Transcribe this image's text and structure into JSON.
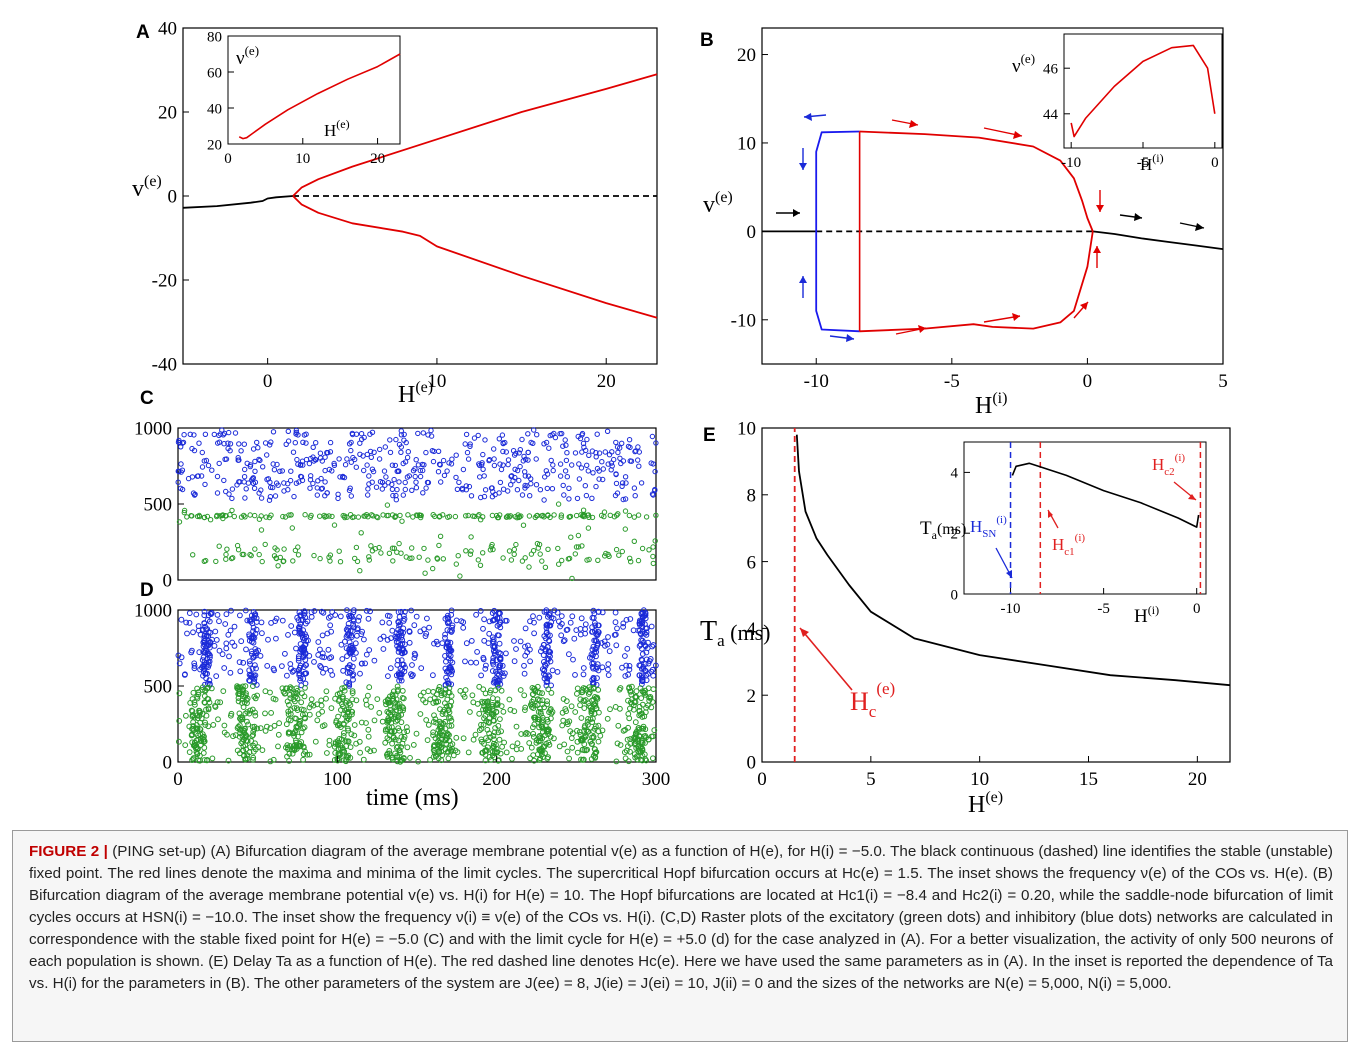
{
  "panel_labels": {
    "A": "A",
    "B": "B",
    "C": "C",
    "D": "D",
    "E": "E"
  },
  "chart_data": [
    {
      "panel": "A",
      "type": "line",
      "xlabel": "H(e)",
      "ylabel": "v(e)",
      "xlim": [
        -5,
        23
      ],
      "ylim": [
        -40,
        40
      ],
      "x_ticks": [
        "0",
        "10",
        "20"
      ],
      "y_ticks": [
        "40",
        "20",
        "0",
        "-20",
        "-40"
      ],
      "series": [
        {
          "role": "stable fixed point",
          "color": "#000000",
          "style": "solid",
          "x": [
            -5,
            -3,
            -1,
            -0.3,
            0,
            0.5,
            1.5
          ],
          "y": [
            -2.8,
            -2.4,
            -1.6,
            -1.2,
            -0.6,
            -0.3,
            0
          ]
        },
        {
          "role": "unstable fixed point",
          "color": "#000000",
          "style": "dashed",
          "x": [
            1.5,
            23
          ],
          "y": [
            0,
            0
          ]
        },
        {
          "role": "limit cycle maxima",
          "color": "#e00000",
          "style": "solid",
          "x": [
            1.5,
            2,
            3,
            5,
            10,
            15,
            20,
            23
          ],
          "y": [
            0,
            2,
            4,
            7,
            13.5,
            20,
            25.5,
            29
          ]
        },
        {
          "role": "limit cycle minima",
          "color": "#e00000",
          "style": "solid",
          "x": [
            1.5,
            2,
            3,
            5,
            8,
            9,
            10,
            15,
            20,
            23
          ],
          "y": [
            0,
            -2,
            -4,
            -6.5,
            -8.5,
            -9.5,
            -12,
            -19,
            -25.5,
            -29
          ]
        }
      ],
      "inset": {
        "xlabel": "H(e)",
        "ylabel": "ν(e)",
        "xlim": [
          0,
          23
        ],
        "ylim": [
          20,
          80
        ],
        "x_ticks": [
          "0",
          "10",
          "20"
        ],
        "y_ticks": [
          "80",
          "60",
          "40",
          "20"
        ],
        "series": [
          {
            "color": "#e00000",
            "x": [
              1.5,
              2,
              2.5,
              3,
              5,
              8,
              12,
              16,
              20,
              23
            ],
            "y": [
              24,
              23,
              23.5,
              25,
              31,
              39,
              48,
              56,
              63,
              70
            ]
          }
        ]
      }
    },
    {
      "panel": "B",
      "type": "line",
      "xlabel": "H(i)",
      "ylabel": "v(e)",
      "xlim": [
        -12,
        5
      ],
      "ylim": [
        -15,
        23
      ],
      "x_ticks": [
        "-10",
        "-5",
        "0",
        "5"
      ],
      "y_ticks": [
        "20",
        "10",
        "0",
        "-10"
      ],
      "series": [
        {
          "role": "stable fixed point",
          "color": "#000000",
          "style": "solid",
          "x": [
            -12,
            -10
          ],
          "y": [
            0,
            0
          ]
        },
        {
          "role": "stable fixed point",
          "color": "#000000",
          "style": "solid",
          "x": [
            0.2,
            1,
            2,
            3,
            4,
            5
          ],
          "y": [
            0,
            -0.3,
            -0.8,
            -1.2,
            -1.6,
            -2
          ]
        },
        {
          "role": "unstable fixed point",
          "color": "#000000",
          "style": "dashed",
          "x": [
            -10,
            0.2
          ],
          "y": [
            0,
            0
          ]
        },
        {
          "role": "unstable limit cycle",
          "color": "#1a1aee",
          "style": "solid",
          "x": [
            -8.4,
            -9.8,
            -10,
            -10,
            -9.8,
            -8.4
          ],
          "y": [
            11.3,
            11.2,
            9,
            -9,
            -11.1,
            -11.3
          ]
        },
        {
          "role": "stable limit cycle maxima",
          "color": "#e00000",
          "style": "solid",
          "x": [
            -8.4,
            -6,
            -4,
            -2,
            -1,
            -0.5,
            -0.2,
            0,
            0.2
          ],
          "y": [
            11.3,
            11,
            10.6,
            9.6,
            8,
            6,
            3.5,
            1.5,
            0
          ]
        },
        {
          "role": "stable limit cycle minima",
          "color": "#e00000",
          "style": "solid",
          "x": [
            -8.4,
            -6,
            -4.2,
            -3.5,
            -2,
            -1,
            -0.5,
            0,
            0.2
          ],
          "y": [
            -11.3,
            -11,
            -10.5,
            -10.8,
            -11,
            -10.3,
            -9,
            -4,
            0
          ]
        }
      ],
      "inset": {
        "xlabel": "H(i)",
        "ylabel": "ν(e)",
        "xlim": [
          -10.5,
          0.5
        ],
        "ylim": [
          42.5,
          47.5
        ],
        "x_ticks": [
          "-10",
          "-5",
          "0"
        ],
        "y_ticks": [
          "46",
          "44"
        ],
        "series": [
          {
            "color": "#e00000",
            "x": [
              -10,
              -9.8,
              -9,
              -7,
              -5,
              -3,
              -1.5,
              -0.5,
              0
            ],
            "y": [
              43.6,
              43,
              43.8,
              45.2,
              46.3,
              46.9,
              47,
              46,
              44
            ]
          }
        ]
      }
    },
    {
      "panel": "C",
      "type": "scatter",
      "ylim": [
        0,
        1000
      ],
      "xlim": [
        0,
        300
      ],
      "y_ticks": [
        "1000",
        "500",
        "0"
      ],
      "series": [
        {
          "name": "",
          "color": "#1a2ad8",
          "y_range": [
            500,
            1000
          ],
          "mode": "random"
        },
        {
          "name": "",
          "color": "#2a9a2a",
          "y_range": [
            0,
            500
          ],
          "mode": "random"
        }
      ]
    },
    {
      "panel": "D",
      "type": "scatter",
      "xlabel": "time (ms)",
      "xlim": [
        0,
        300
      ],
      "ylim": [
        0,
        1000
      ],
      "x_ticks": [
        "0",
        "100",
        "200",
        "300"
      ],
      "y_ticks": [
        "1000",
        "500",
        "0"
      ],
      "burst_times_ms": [
        18,
        47,
        78,
        108,
        140,
        170,
        200,
        232,
        262,
        292
      ],
      "series": [
        {
          "name": "",
          "color": "#1a2ad8",
          "y_range": [
            500,
            1000
          ],
          "mode": "bursts"
        },
        {
          "name": "",
          "color": "#2a9a2a",
          "y_range": [
            0,
            500
          ],
          "mode": "bursts"
        }
      ]
    },
    {
      "panel": "E",
      "type": "line",
      "xlabel": "H(e)",
      "ylabel": "Ta (ms)",
      "xlim": [
        0,
        21.5
      ],
      "ylim": [
        0,
        10
      ],
      "x_ticks": [
        "0",
        "5",
        "10",
        "15",
        "20"
      ],
      "y_ticks": [
        "10",
        "8",
        "6",
        "4",
        "2",
        "0"
      ],
      "series": [
        {
          "role": "Ta vs H(e)",
          "color": "#000000",
          "style": "solid",
          "x": [
            1.6,
            1.7,
            2,
            2.5,
            3,
            4,
            5,
            7,
            10,
            13,
            16,
            19,
            21.5
          ],
          "y": [
            9.8,
            8.7,
            7.5,
            6.7,
            6.2,
            5.3,
            4.5,
            3.7,
            3.2,
            2.9,
            2.6,
            2.45,
            2.3
          ]
        },
        {
          "role": "Hc(e)",
          "color": "#e02020",
          "style": "dashed",
          "x": [
            1.5,
            1.5
          ],
          "y": [
            0,
            10
          ]
        }
      ],
      "annotation": {
        "text": "Hc(e)",
        "color": "#e02020"
      },
      "inset": {
        "xlabel": "H(i)",
        "ylabel": "Ta(ms)",
        "xlim": [
          -12.5,
          0.5
        ],
        "ylim": [
          0,
          5
        ],
        "x_ticks": [
          "-10",
          "-5",
          "0"
        ],
        "y_ticks": [
          "4",
          "2",
          "0"
        ],
        "series": [
          {
            "color": "#000000",
            "x": [
              -9.9,
              -9.7,
              -9,
              -8.5,
              -7,
              -5,
              -3,
              -1,
              0,
              0.1
            ],
            "y": [
              3.9,
              4.2,
              4.3,
              4.2,
              3.9,
              3.4,
              3,
              2.5,
              2.2,
              2.6
            ]
          }
        ],
        "vlines": [
          {
            "label": "HSN(i)",
            "x": -10,
            "color": "#1a2ad8"
          },
          {
            "label": "Hc1(i)",
            "x": -8.4,
            "color": "#e02020"
          },
          {
            "label": "Hc2(i)",
            "x": 0.2,
            "color": "#e02020"
          }
        ]
      }
    }
  ],
  "caption": {
    "figure_label": "FIGURE 2 |",
    "text": "(PING set-up) (A) Bifurcation diagram of the average membrane potential v(e) as a function of H(e), for H(i) = −5.0. The black continuous (dashed) line identifies the stable (unstable) fixed point. The red lines denote the maxima and minima of the limit cycles. The supercritical Hopf bifurcation occurs at Hc(e) = 1.5. The inset shows the frequency ν(e) of the COs vs. H(e). (B) Bifurcation diagram of the average membrane potential v(e) vs. H(i) for H(e) = 10. The Hopf bifurcations are located at Hc1(i) = −8.4 and Hc2(i) = 0.20, while the saddle-node bifurcation of limit cycles occurs at HSN(i) = −10.0. The inset show the frequency ν(i) ≡ ν(e) of the COs vs. H(i). (C,D) Raster plots of the excitatory (green dots) and inhibitory (blue dots) networks are calculated in correspondence with the stable fixed point for H(e) = −5.0 (C) and with the limit cycle for H(e) = +5.0 (d) for the case analyzed in (A). For a better visualization, the activity of only 500 neurons of each population is shown. (E) Delay Ta as a function of H(e). The red dashed line denotes Hc(e). Here we have used the same parameters as in (A). In the inset is reported the dependence of Ta vs. H(i) for the parameters in (B). The other parameters of the system are J(ee) = 8, J(ie) = J(ei) = 10, J(ii) = 0 and the sizes of the networks are N(e) = 5,000, N(i) = 5,000."
  }
}
